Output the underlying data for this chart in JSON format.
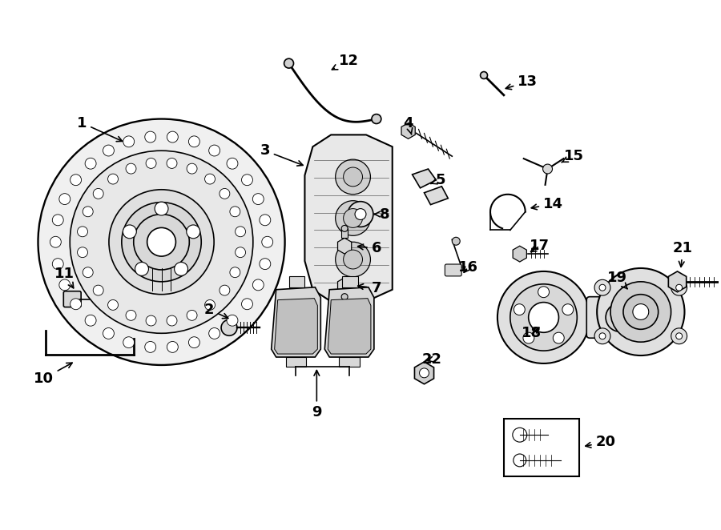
{
  "bg_color": "#ffffff",
  "line_color": "#000000",
  "line_width": 1.2,
  "label_fontsize": 13,
  "label_fontweight": "bold"
}
